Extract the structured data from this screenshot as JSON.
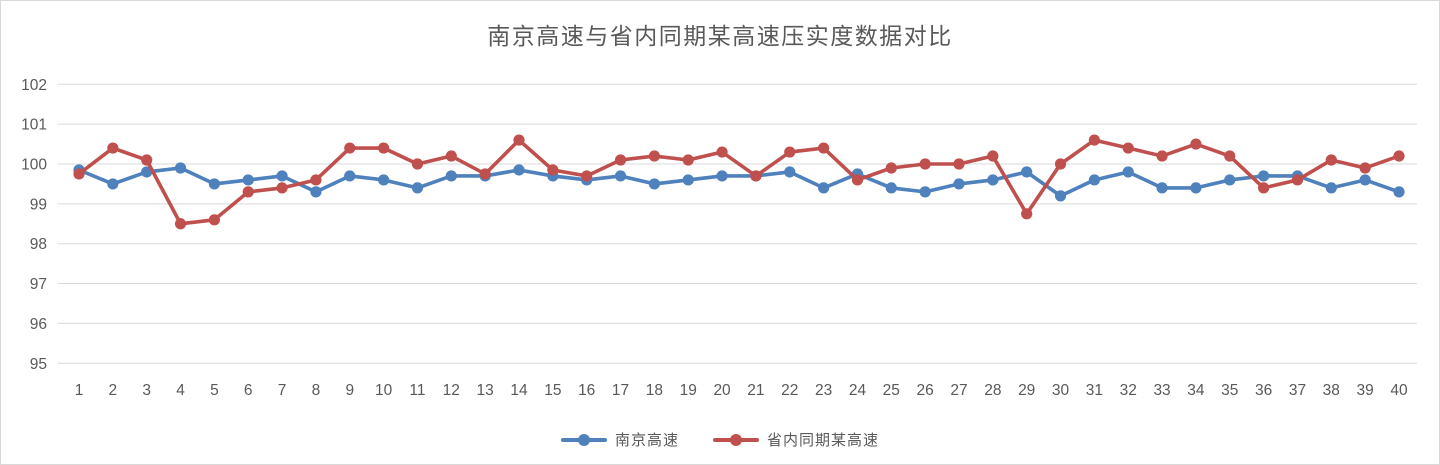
{
  "title": "南京高速与省内同期某高速压实度数据对比",
  "colors": {
    "series1": "#4f81bd",
    "series2": "#c0504d",
    "grid": "#d9d9d9",
    "text": "#595959",
    "background": "#ffffff"
  },
  "chart_data": {
    "type": "line",
    "title": "南京高速与省内同期某高速压实度数据对比",
    "xlabel": "",
    "ylabel": "",
    "x": [
      1,
      2,
      3,
      4,
      5,
      6,
      7,
      8,
      9,
      10,
      11,
      12,
      13,
      14,
      15,
      16,
      17,
      18,
      19,
      20,
      21,
      22,
      23,
      24,
      25,
      26,
      27,
      28,
      29,
      30,
      31,
      32,
      33,
      34,
      35,
      36,
      37,
      38,
      39,
      40
    ],
    "ylim": [
      95,
      102
    ],
    "yticks": [
      95,
      96,
      97,
      98,
      99,
      100,
      101,
      102
    ],
    "grid": true,
    "legend_position": "bottom",
    "series": [
      {
        "name": "南京高速",
        "color": "#4f81bd",
        "marker": "circle",
        "values": [
          99.85,
          99.5,
          99.8,
          99.9,
          99.5,
          99.6,
          99.7,
          99.3,
          99.7,
          99.6,
          99.4,
          99.7,
          99.7,
          99.85,
          99.7,
          99.6,
          99.7,
          99.5,
          99.6,
          99.7,
          99.7,
          99.8,
          99.4,
          99.75,
          99.4,
          99.3,
          99.5,
          99.6,
          99.8,
          99.2,
          99.6,
          99.8,
          99.4,
          99.4,
          99.6,
          99.7,
          99.7,
          99.4,
          99.6,
          99.3
        ]
      },
      {
        "name": "省内同期某高速",
        "color": "#c0504d",
        "marker": "circle",
        "values": [
          99.75,
          100.4,
          100.1,
          98.5,
          98.6,
          99.3,
          99.4,
          99.6,
          100.4,
          100.4,
          100.0,
          100.2,
          99.75,
          100.6,
          99.85,
          99.7,
          100.1,
          100.2,
          100.1,
          100.3,
          99.7,
          100.3,
          100.4,
          99.6,
          99.9,
          100.0,
          100.0,
          100.2,
          98.75,
          100.0,
          100.6,
          100.4,
          100.2,
          100.5,
          100.2,
          99.4,
          99.6,
          100.1,
          99.9,
          100.2
        ]
      }
    ]
  }
}
